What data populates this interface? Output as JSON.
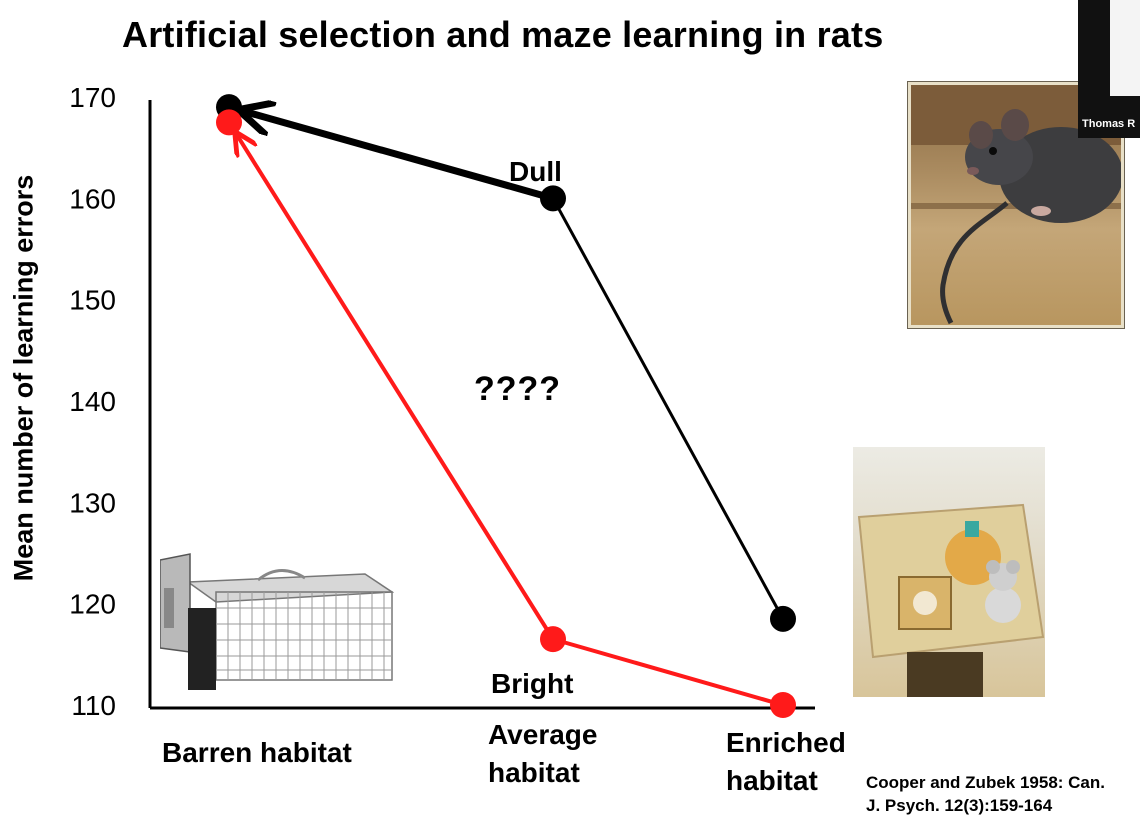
{
  "title": "Artificial selection and maze learning in rats",
  "chart_data": {
    "type": "line",
    "ylabel": "Mean number of learning errors",
    "xlabel": "",
    "ylim": [
      110,
      170
    ],
    "yticks": [
      "170",
      "160",
      "150",
      "140",
      "130",
      "120",
      "110"
    ],
    "categories": [
      "Barren habitat",
      "Average habitat",
      "Enriched habitat"
    ],
    "series": [
      {
        "name": "Dull",
        "color": "#000000",
        "values": [
          169,
          160,
          118.5
        ]
      },
      {
        "name": "Bright",
        "color": "#ff1a1a",
        "values": [
          167.5,
          116.5,
          110
        ]
      }
    ],
    "annotation": "????",
    "grid": false
  },
  "category_labels": {
    "barren": "Barren habitat",
    "average_line1": "Average",
    "average_line2": "habitat",
    "enriched_line1": "Enriched",
    "enriched_line2": "habitat"
  },
  "series_labels": {
    "dull": "Dull",
    "bright": "Bright"
  },
  "citation": {
    "line1": "Cooper and Zubek 1958: Can.",
    "line2": "J. Psych. 12(3):159-164"
  },
  "webcam": {
    "name": "Thomas R"
  },
  "colors": {
    "dull": "#000000",
    "bright": "#ff1a1a"
  }
}
